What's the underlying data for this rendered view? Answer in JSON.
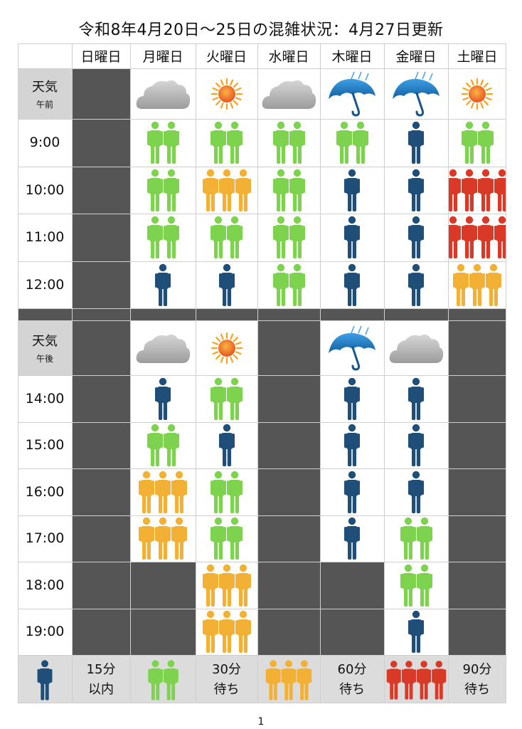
{
  "title": "令和8年4月20日〜25日の混雑状況：4月27日更新",
  "days": [
    "日曜日",
    "月曜日",
    "火曜日",
    "水曜日",
    "木曜日",
    "金曜日",
    "土曜日"
  ],
  "weather_label_big": "天気",
  "am_label_small": "午前",
  "pm_label_small": "午後",
  "am_times": [
    "9:00",
    "10:00",
    "11:00",
    "12:00"
  ],
  "pm_times": [
    "14:00",
    "15:00",
    "16:00",
    "17:00",
    "18:00",
    "19:00"
  ],
  "weather_am": [
    "closed",
    "cloud",
    "sun",
    "cloud",
    "umbrella",
    "umbrella",
    "sun"
  ],
  "weather_pm": [
    "closed",
    "cloud",
    "sun",
    "closed",
    "umbrella",
    "cloud",
    "closed"
  ],
  "crowd_am": [
    [
      null,
      2,
      2,
      2,
      2,
      1,
      2
    ],
    [
      null,
      2,
      3,
      2,
      1,
      1,
      4
    ],
    [
      null,
      2,
      2,
      2,
      1,
      1,
      4
    ],
    [
      null,
      1,
      1,
      2,
      1,
      1,
      3
    ]
  ],
  "crowd_pm": [
    [
      null,
      1,
      2,
      null,
      1,
      1,
      null
    ],
    [
      null,
      2,
      1,
      null,
      1,
      1,
      null
    ],
    [
      null,
      3,
      2,
      null,
      1,
      1,
      null
    ],
    [
      null,
      3,
      2,
      null,
      1,
      2,
      null
    ],
    [
      null,
      null,
      3,
      null,
      null,
      2,
      null
    ],
    [
      null,
      null,
      3,
      null,
      null,
      1,
      null
    ]
  ],
  "legend": [
    {
      "line1": "15分",
      "line2": "以内"
    },
    {
      "line1": "30分",
      "line2": "待ち"
    },
    {
      "line1": "60分",
      "line2": "待ち"
    },
    {
      "line1": "90分",
      "line2": "待ち"
    }
  ],
  "colors": {
    "1": "#1f4e79",
    "2": "#7ed34e",
    "3": "#f2b035",
    "4": "#d93a27"
  },
  "page_number": "1"
}
